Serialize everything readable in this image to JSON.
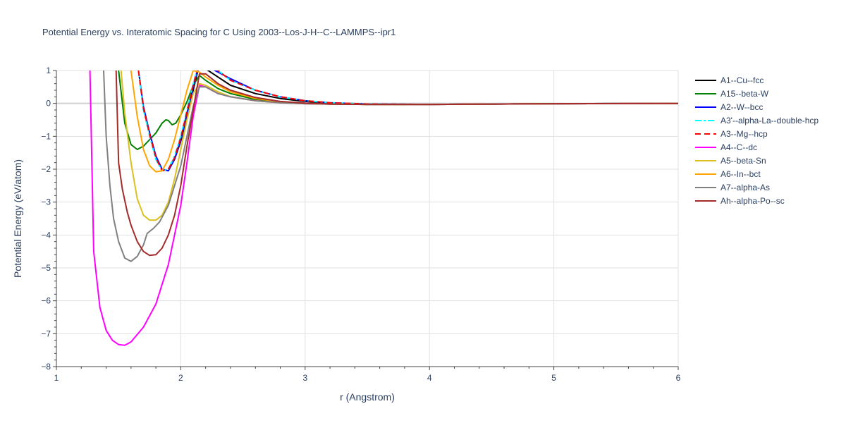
{
  "chart_data": {
    "type": "line",
    "title": "Potential Energy vs. Interatomic Spacing for C Using 2003--Los-J-H--C--LAMMPS--ipr1",
    "xlabel": "r (Angstrom)",
    "ylabel": "Potential Energy (eV/atom)",
    "xlim": [
      1,
      6
    ],
    "ylim": [
      -8,
      1
    ],
    "xticks": [
      1,
      2,
      3,
      4,
      5,
      6
    ],
    "yticks": [
      1,
      0,
      -1,
      -2,
      -3,
      -4,
      -5,
      -6,
      -7,
      -8
    ],
    "ytick_labels": [
      "1",
      "0",
      "−1",
      "−2",
      "−3",
      "−4",
      "−5",
      "−6",
      "−7",
      "−8"
    ],
    "grid": true,
    "legend_position": "top-right",
    "series": [
      {
        "name": "A1--Cu--fcc",
        "color": "#000000",
        "dash": "solid",
        "x": [
          1.9,
          1.95,
          2.0,
          2.05,
          2.1,
          2.15,
          2.2,
          2.3,
          2.4,
          2.6,
          2.8,
          3.0,
          3.2,
          3.5,
          4.0,
          5.0,
          6.0
        ],
        "y": [
          -2.0,
          -1.7,
          -1.15,
          -0.4,
          0.4,
          1.2,
          1.05,
          0.8,
          0.55,
          0.3,
          0.15,
          0.06,
          0.01,
          -0.03,
          -0.03,
          -0.01,
          0.0
        ]
      },
      {
        "name": "A15--beta-W",
        "color": "#008000",
        "dash": "solid",
        "x": [
          1.5,
          1.55,
          1.6,
          1.65,
          1.7,
          1.75,
          1.8,
          1.85,
          1.88,
          1.9,
          1.93,
          1.96,
          2.0,
          2.05,
          2.1,
          2.15,
          2.2,
          2.3,
          2.4,
          2.6,
          2.8,
          3.0,
          3.2,
          3.5,
          4.0,
          5.0,
          6.0
        ],
        "y": [
          1.0,
          -0.6,
          -1.25,
          -1.4,
          -1.3,
          -1.1,
          -0.9,
          -0.6,
          -0.5,
          -0.52,
          -0.65,
          -0.6,
          -0.35,
          0.05,
          0.55,
          0.85,
          0.7,
          0.45,
          0.3,
          0.12,
          0.04,
          0.0,
          -0.02,
          -0.03,
          -0.03,
          -0.01,
          0.0
        ]
      },
      {
        "name": "A2--W--bcc",
        "color": "#0000ff",
        "dash": "solid",
        "x": [
          1.66,
          1.7,
          1.75,
          1.8,
          1.85,
          1.9,
          1.95,
          2.0,
          2.05,
          2.1,
          2.15,
          2.2,
          2.3,
          2.4,
          2.6,
          2.8,
          3.0,
          3.2,
          3.5,
          4.0,
          5.0,
          6.0
        ],
        "y": [
          1.0,
          -0.1,
          -0.9,
          -1.6,
          -2.0,
          -2.05,
          -1.7,
          -1.1,
          -0.3,
          0.5,
          1.3,
          1.15,
          0.95,
          0.75,
          0.4,
          0.2,
          0.08,
          0.02,
          -0.02,
          -0.03,
          -0.01,
          0.0
        ]
      },
      {
        "name": "A3'--alpha-La--double-hcp",
        "color": "#00ffff",
        "dash": "dashdot",
        "x": [
          1.66,
          1.7,
          1.75,
          1.8,
          1.85,
          1.9,
          1.95,
          2.0,
          2.05,
          2.1,
          2.15,
          2.2,
          2.3,
          2.4,
          2.6,
          2.8,
          3.0,
          3.2,
          3.5,
          4.0,
          5.0,
          6.0
        ],
        "y": [
          1.0,
          -0.2,
          -1.0,
          -1.7,
          -2.05,
          -2.0,
          -1.6,
          -1.0,
          -0.2,
          0.6,
          1.3,
          1.2,
          1.0,
          0.7,
          0.4,
          0.2,
          0.08,
          0.02,
          -0.02,
          -0.03,
          -0.01,
          0.0
        ]
      },
      {
        "name": "A3--Mg--hcp",
        "color": "#ff0000",
        "dash": "dash",
        "x": [
          1.66,
          1.7,
          1.75,
          1.8,
          1.85,
          1.9,
          1.95,
          2.0,
          2.05,
          2.1,
          2.15,
          2.2,
          2.3,
          2.4,
          2.6,
          2.8,
          3.0,
          3.2,
          3.5,
          4.0,
          5.0,
          6.0
        ],
        "y": [
          1.0,
          -0.15,
          -0.95,
          -1.65,
          -2.05,
          -2.0,
          -1.65,
          -1.05,
          -0.25,
          0.55,
          1.3,
          1.2,
          1.0,
          0.7,
          0.4,
          0.2,
          0.08,
          0.02,
          -0.02,
          -0.03,
          -0.01,
          0.0
        ]
      },
      {
        "name": "A4--C--dc",
        "color": "#ff00ff",
        "dash": "solid",
        "x": [
          1.27,
          1.3,
          1.35,
          1.4,
          1.45,
          1.5,
          1.55,
          1.6,
          1.7,
          1.8,
          1.9,
          2.0,
          2.05,
          2.1,
          2.15,
          2.2,
          2.3,
          2.4,
          2.6,
          2.8,
          3.0,
          3.2,
          3.5,
          4.0,
          5.0,
          6.0
        ],
        "y": [
          1.0,
          -4.5,
          -6.2,
          -6.9,
          -7.2,
          -7.33,
          -7.35,
          -7.25,
          -6.8,
          -6.1,
          -4.9,
          -3.1,
          -1.8,
          -0.4,
          0.55,
          0.5,
          0.3,
          0.2,
          0.08,
          0.02,
          -0.01,
          -0.02,
          -0.03,
          -0.03,
          -0.01,
          0.0
        ]
      },
      {
        "name": "A5--beta-Sn",
        "color": "#dbc020",
        "dash": "solid",
        "x": [
          1.52,
          1.55,
          1.6,
          1.65,
          1.7,
          1.75,
          1.8,
          1.85,
          1.9,
          1.95,
          2.0,
          2.05,
          2.1,
          2.15,
          2.2,
          2.3,
          2.4,
          2.6,
          2.8,
          3.0,
          3.2,
          3.5,
          4.0,
          5.0,
          6.0
        ],
        "y": [
          1.0,
          -0.3,
          -1.8,
          -2.9,
          -3.4,
          -3.55,
          -3.55,
          -3.4,
          -3.0,
          -2.3,
          -1.4,
          -0.5,
          0.3,
          0.6,
          0.55,
          0.35,
          0.2,
          0.08,
          0.02,
          -0.01,
          -0.02,
          -0.03,
          -0.03,
          -0.01,
          0.0
        ]
      },
      {
        "name": "A6--In--bct",
        "color": "#ffa500",
        "dash": "solid",
        "x": [
          1.6,
          1.65,
          1.7,
          1.75,
          1.8,
          1.85,
          1.9,
          1.95,
          2.0,
          2.05,
          2.1,
          2.15,
          2.2,
          2.3,
          2.4,
          2.6,
          2.8,
          3.0,
          3.2,
          3.5,
          4.0,
          5.0,
          6.0
        ],
        "y": [
          1.0,
          -0.4,
          -1.4,
          -1.9,
          -2.08,
          -2.05,
          -1.7,
          -1.1,
          -0.35,
          0.4,
          1.0,
          0.95,
          0.8,
          0.55,
          0.35,
          0.15,
          0.05,
          0.0,
          -0.02,
          -0.03,
          -0.03,
          -0.01,
          0.0
        ]
      },
      {
        "name": "A7--alpha-As",
        "color": "#808080",
        "dash": "solid",
        "x": [
          1.38,
          1.4,
          1.43,
          1.46,
          1.5,
          1.55,
          1.6,
          1.65,
          1.7,
          1.73,
          1.78,
          1.83,
          1.9,
          2.0,
          2.05,
          2.1,
          2.15,
          2.2,
          2.3,
          2.4,
          2.6,
          2.8,
          3.0,
          3.2,
          3.5,
          4.0,
          5.0,
          6.0
        ],
        "y": [
          1.0,
          -1.0,
          -2.5,
          -3.5,
          -4.2,
          -4.7,
          -4.8,
          -4.65,
          -4.3,
          -3.95,
          -3.8,
          -3.6,
          -3.1,
          -1.9,
          -1.0,
          -0.1,
          0.5,
          0.5,
          0.3,
          0.2,
          0.08,
          0.02,
          -0.01,
          -0.02,
          -0.03,
          -0.03,
          -0.01,
          0.0
        ]
      },
      {
        "name": "Ah--alpha-Po--sc",
        "color": "#a52a2a",
        "dash": "solid",
        "x": [
          1.48,
          1.5,
          1.53,
          1.57,
          1.6,
          1.65,
          1.7,
          1.75,
          1.8,
          1.85,
          1.9,
          1.95,
          2.0,
          2.05,
          2.1,
          2.15,
          2.2,
          2.3,
          2.4,
          2.6,
          2.8,
          3.0,
          3.2,
          3.5,
          4.0,
          5.0,
          6.0
        ],
        "y": [
          1.0,
          -1.8,
          -2.6,
          -3.3,
          -3.7,
          -4.2,
          -4.5,
          -4.62,
          -4.6,
          -4.4,
          -4.0,
          -3.4,
          -2.5,
          -1.3,
          -0.2,
          0.9,
          0.9,
          0.6,
          0.4,
          0.18,
          0.06,
          0.01,
          -0.02,
          -0.03,
          -0.03,
          -0.01,
          0.0
        ]
      }
    ]
  }
}
